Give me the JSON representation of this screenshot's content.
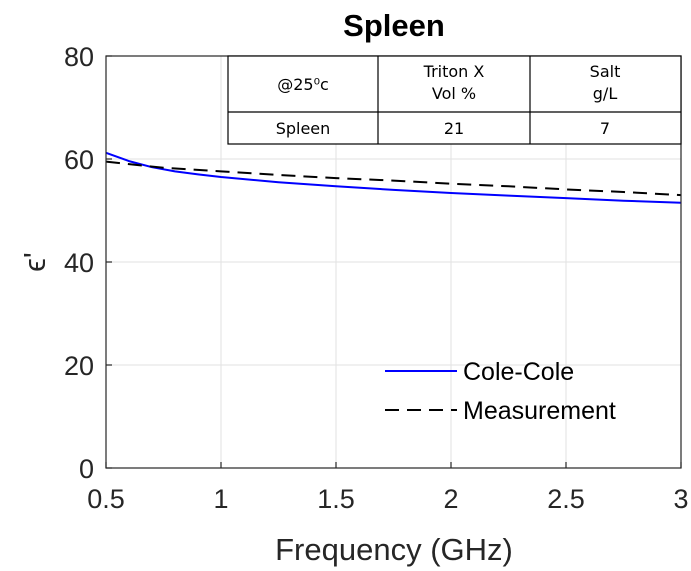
{
  "chart_data": {
    "type": "line",
    "title": "Spleen",
    "xlabel": "Frequency (GHz)",
    "ylabel": "ϵ'",
    "xlim": [
      0.5,
      3
    ],
    "ylim": [
      0,
      80
    ],
    "xticks": [
      0.5,
      1,
      1.5,
      2,
      2.5,
      3
    ],
    "yticks": [
      0,
      20,
      40,
      60,
      80
    ],
    "x_tick_labels": [
      "0.5",
      "1",
      "1.5",
      "2",
      "2.5",
      "3"
    ],
    "y_tick_labels": [
      "0",
      "20",
      "40",
      "60",
      "80"
    ],
    "grid": true,
    "legend_position": "lower-right",
    "series": [
      {
        "name": "Cole-Cole",
        "color": "#0000ff",
        "style": "solid",
        "x": [
          0.5,
          0.6,
          0.7,
          0.8,
          0.9,
          1.0,
          1.25,
          1.5,
          1.75,
          2.0,
          2.25,
          2.5,
          2.75,
          3.0
        ],
        "y": [
          61.2,
          59.6,
          58.4,
          57.6,
          57.0,
          56.5,
          55.5,
          54.7,
          54.0,
          53.4,
          52.9,
          52.4,
          51.9,
          51.5
        ]
      },
      {
        "name": "Measurement",
        "color": "#000000",
        "style": "dashed",
        "x": [
          0.5,
          0.75,
          1.0,
          1.25,
          1.5,
          1.75,
          2.0,
          2.25,
          2.5,
          2.75,
          3.0
        ],
        "y": [
          59.5,
          58.3,
          57.6,
          56.9,
          56.3,
          55.8,
          55.2,
          54.7,
          54.1,
          53.6,
          53.0
        ]
      }
    ],
    "table": {
      "headers": [
        "@25⁰c",
        "Triton X\nVol %",
        "Salt\ng/L"
      ],
      "rows": [
        [
          "Spleen",
          "21",
          "7"
        ]
      ]
    }
  }
}
